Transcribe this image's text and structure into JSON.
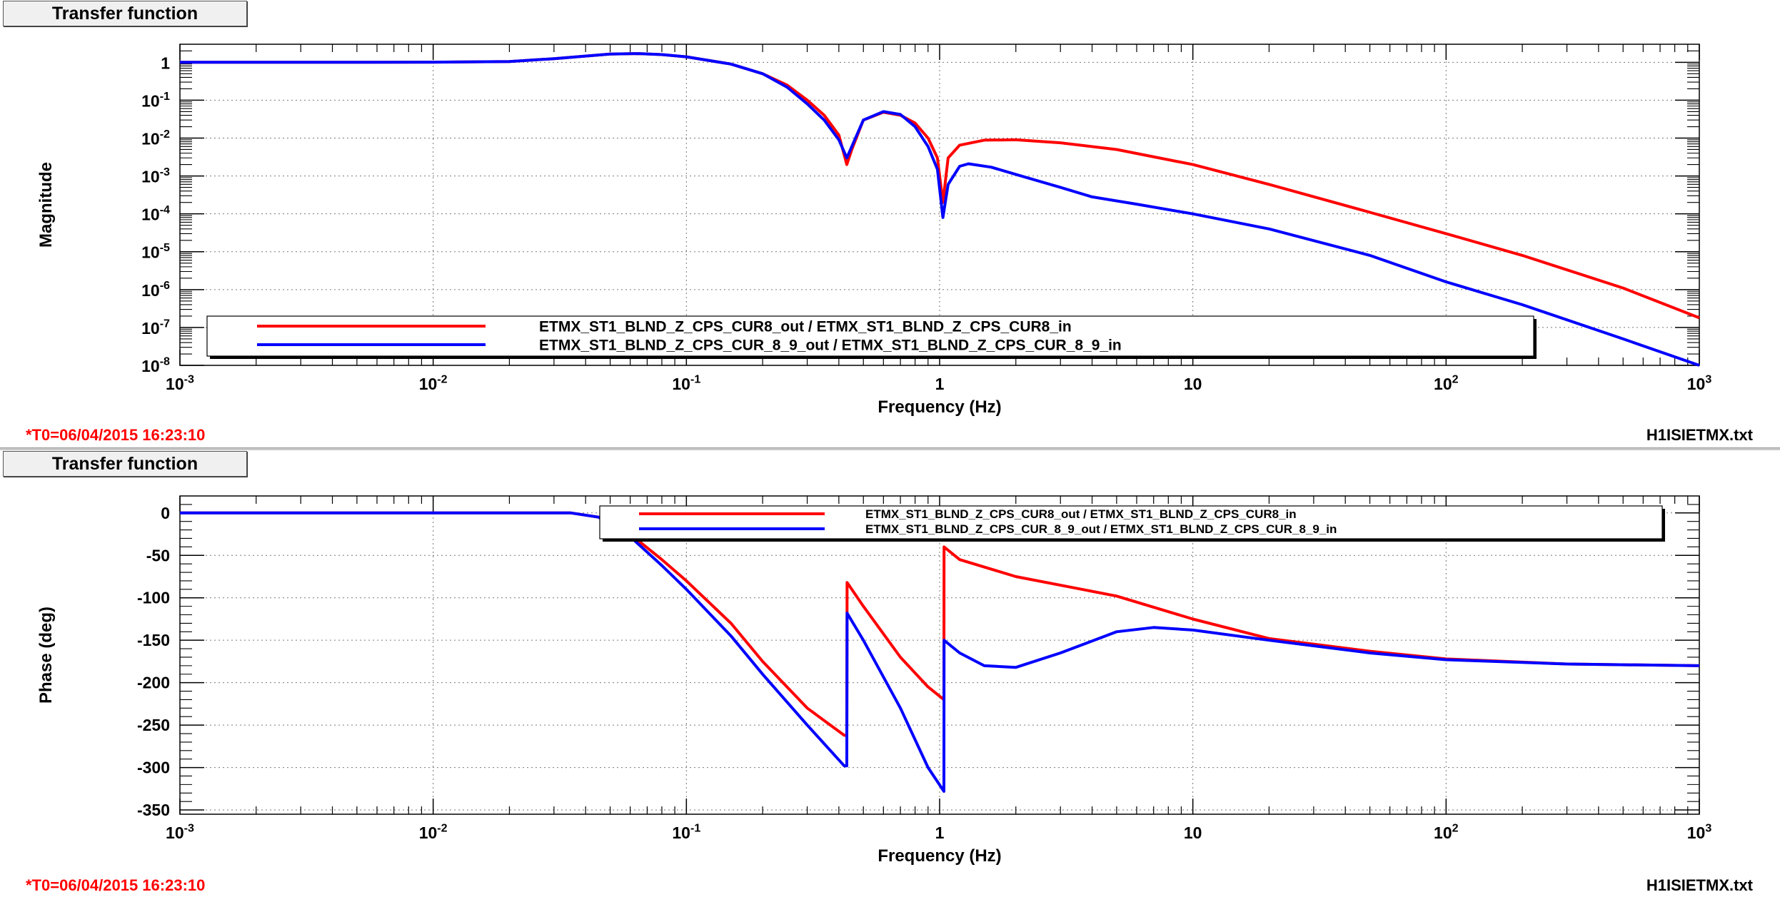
{
  "panels": [
    {
      "title": "Transfer function",
      "t0": "*T0=06/04/2015 16:23:10",
      "file": "H1ISIETMX.txt"
    },
    {
      "title": "Transfer function",
      "t0": "*T0=06/04/2015 16:23:10",
      "file": "H1ISIETMX.txt"
    }
  ],
  "chart_data": [
    {
      "type": "line",
      "title": "",
      "xlabel": "Frequency (Hz)",
      "ylabel": "Magnitude",
      "xscale": "log",
      "yscale": "log",
      "xlim": [
        0.001,
        1000
      ],
      "ylim": [
        1e-08,
        3
      ],
      "x_ticks": [
        "10-3",
        "10-2",
        "10-1",
        "1",
        "10",
        "102",
        "103"
      ],
      "y_ticks": [
        "1",
        "10-1",
        "10-2",
        "10-3",
        "10-4",
        "10-5",
        "10-6",
        "10-7",
        "10-8"
      ],
      "grid": true,
      "legend_position": "bottom-left",
      "series": [
        {
          "name": "ETMX_ST1_BLND_Z_CPS_CUR8_out / ETMX_ST1_BLND_Z_CPS_CUR8_in",
          "color": "#ff0000",
          "points": [
            [
              0.001,
              1
            ],
            [
              0.005,
              1
            ],
            [
              0.01,
              1.01
            ],
            [
              0.02,
              1.05
            ],
            [
              0.03,
              1.25
            ],
            [
              0.05,
              1.65
            ],
            [
              0.065,
              1.7
            ],
            [
              0.08,
              1.6
            ],
            [
              0.1,
              1.4
            ],
            [
              0.15,
              0.9
            ],
            [
              0.2,
              0.5
            ],
            [
              0.25,
              0.25
            ],
            [
              0.3,
              0.1
            ],
            [
              0.35,
              0.04
            ],
            [
              0.4,
              0.012
            ],
            [
              0.43,
              0.002
            ],
            [
              0.45,
              0.005
            ],
            [
              0.5,
              0.03
            ],
            [
              0.6,
              0.048
            ],
            [
              0.7,
              0.04
            ],
            [
              0.8,
              0.025
            ],
            [
              0.9,
              0.01
            ],
            [
              0.98,
              0.003
            ],
            [
              1.03,
              0.0002
            ],
            [
              1.08,
              0.003
            ],
            [
              1.2,
              0.0065
            ],
            [
              1.5,
              0.0088
            ],
            [
              2,
              0.009
            ],
            [
              3,
              0.0075
            ],
            [
              5,
              0.005
            ],
            [
              10,
              0.002
            ],
            [
              20,
              0.0006
            ],
            [
              50,
              0.00011
            ],
            [
              100,
              3e-05
            ],
            [
              200,
              8e-06
            ],
            [
              500,
              1.1e-06
            ],
            [
              1000,
              1.8e-07
            ]
          ]
        },
        {
          "name": "ETMX_ST1_BLND_Z_CPS_CUR_8_9_out / ETMX_ST1_BLND_Z_CPS_CUR_8_9_in",
          "color": "#0000ff",
          "points": [
            [
              0.001,
              1
            ],
            [
              0.005,
              1
            ],
            [
              0.01,
              1.01
            ],
            [
              0.02,
              1.05
            ],
            [
              0.03,
              1.25
            ],
            [
              0.05,
              1.65
            ],
            [
              0.065,
              1.7
            ],
            [
              0.08,
              1.6
            ],
            [
              0.1,
              1.4
            ],
            [
              0.15,
              0.9
            ],
            [
              0.2,
              0.5
            ],
            [
              0.25,
              0.22
            ],
            [
              0.3,
              0.08
            ],
            [
              0.35,
              0.03
            ],
            [
              0.4,
              0.009
            ],
            [
              0.43,
              0.003
            ],
            [
              0.45,
              0.006
            ],
            [
              0.5,
              0.03
            ],
            [
              0.6,
              0.05
            ],
            [
              0.7,
              0.042
            ],
            [
              0.8,
              0.02
            ],
            [
              0.9,
              0.006
            ],
            [
              0.98,
              0.0015
            ],
            [
              1.03,
              8e-05
            ],
            [
              1.08,
              0.0006
            ],
            [
              1.2,
              0.0018
            ],
            [
              1.3,
              0.0021
            ],
            [
              1.6,
              0.0017
            ],
            [
              2,
              0.0011
            ],
            [
              3,
              0.0005
            ],
            [
              4,
              0.00028
            ],
            [
              6,
              0.00018
            ],
            [
              10,
              0.0001
            ],
            [
              20,
              4e-05
            ],
            [
              50,
              8e-06
            ],
            [
              100,
              1.6e-06
            ],
            [
              200,
              4e-07
            ],
            [
              500,
              5e-08
            ],
            [
              1000,
              1e-08
            ]
          ]
        }
      ]
    },
    {
      "type": "line",
      "title": "",
      "xlabel": "Frequency (Hz)",
      "ylabel": "Phase (deg)",
      "xscale": "log",
      "xlim": [
        0.001,
        1000
      ],
      "ylim": [
        -355,
        20
      ],
      "x_ticks": [
        "10-3",
        "10-2",
        "10-1",
        "1",
        "10",
        "102",
        "103"
      ],
      "y_ticks": [
        0,
        -50,
        -100,
        -150,
        -200,
        -250,
        -300,
        -350
      ],
      "grid": true,
      "legend_position": "top-right",
      "series": [
        {
          "name": "ETMX_ST1_BLND_Z_CPS_CUR8_out / ETMX_ST1_BLND_Z_CPS_CUR8_in",
          "color": "#ff0000",
          "points": [
            [
              0.001,
              0
            ],
            [
              0.01,
              0
            ],
            [
              0.02,
              0
            ],
            [
              0.035,
              0
            ],
            [
              0.045,
              -5
            ],
            [
              0.06,
              -25
            ],
            [
              0.08,
              -55
            ],
            [
              0.1,
              -80
            ],
            [
              0.15,
              -130
            ],
            [
              0.2,
              -175
            ],
            [
              0.3,
              -230
            ],
            [
              0.42,
              -262
            ],
            [
              0.43,
              -262
            ],
            [
              0.431,
              -82
            ],
            [
              0.5,
              -110
            ],
            [
              0.7,
              -170
            ],
            [
              0.9,
              -205
            ],
            [
              1.04,
              -220
            ],
            [
              1.041,
              -40
            ],
            [
              1.2,
              -55
            ],
            [
              2,
              -75
            ],
            [
              5,
              -98
            ],
            [
              10,
              -125
            ],
            [
              20,
              -148
            ],
            [
              50,
              -163
            ],
            [
              100,
              -172
            ],
            [
              300,
              -178
            ],
            [
              1000,
              -180
            ]
          ]
        },
        {
          "name": "ETMX_ST1_BLND_Z_CPS_CUR_8_9_out / ETMX_ST1_BLND_Z_CPS_CUR_8_9_in",
          "color": "#0000ff",
          "points": [
            [
              0.001,
              0
            ],
            [
              0.01,
              0
            ],
            [
              0.02,
              0
            ],
            [
              0.035,
              0
            ],
            [
              0.045,
              -5
            ],
            [
              0.06,
              -28
            ],
            [
              0.08,
              -62
            ],
            [
              0.1,
              -90
            ],
            [
              0.15,
              -145
            ],
            [
              0.2,
              -190
            ],
            [
              0.3,
              -250
            ],
            [
              0.42,
              -298
            ],
            [
              0.43,
              -298
            ],
            [
              0.431,
              -118
            ],
            [
              0.5,
              -150
            ],
            [
              0.7,
              -230
            ],
            [
              0.9,
              -300
            ],
            [
              1.04,
              -328
            ],
            [
              1.041,
              -150
            ],
            [
              1.2,
              -165
            ],
            [
              1.5,
              -180
            ],
            [
              2,
              -182
            ],
            [
              3,
              -165
            ],
            [
              5,
              -140
            ],
            [
              7,
              -135
            ],
            [
              10,
              -138
            ],
            [
              20,
              -150
            ],
            [
              50,
              -165
            ],
            [
              100,
              -173
            ],
            [
              300,
              -178
            ],
            [
              1000,
              -180
            ]
          ]
        }
      ]
    }
  ]
}
